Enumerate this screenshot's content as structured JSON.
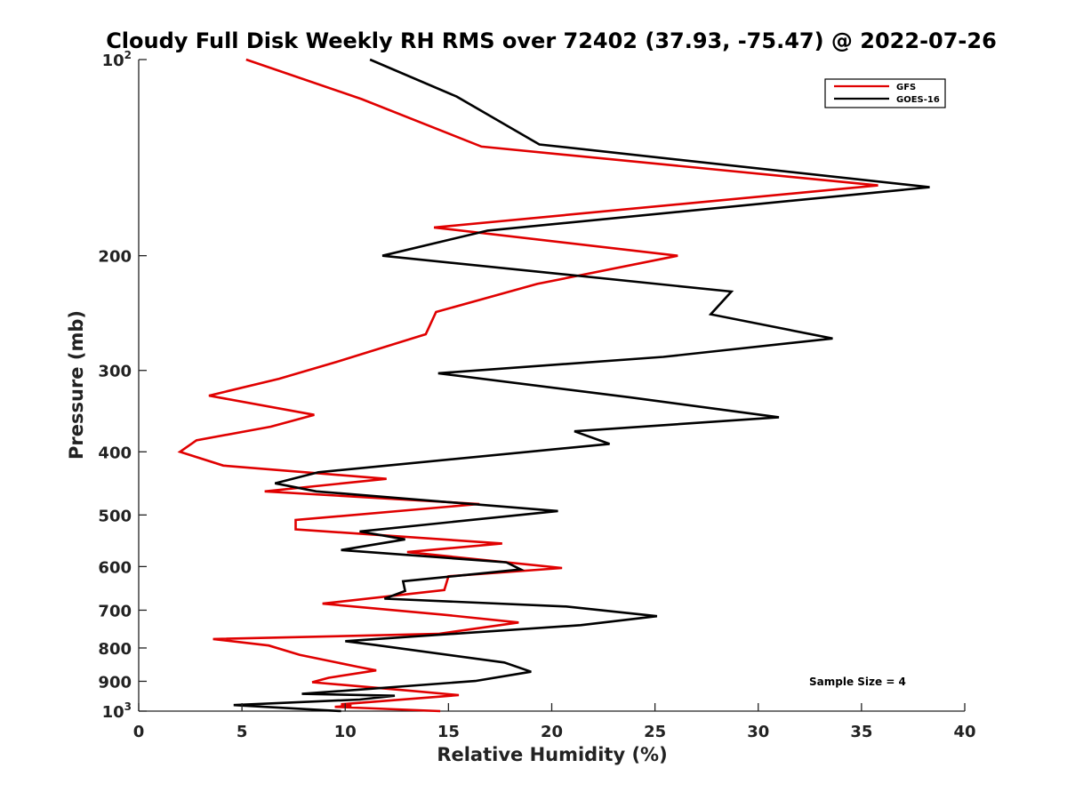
{
  "chart_data": {
    "type": "line",
    "title": "Cloudy Full Disk Weekly RH RMS over 72402 (37.93, -75.47) @ 2022-07-26",
    "xlabel": "Relative Humidity (%)",
    "ylabel": "Pressure (mb)",
    "xlim": [
      0,
      40
    ],
    "ylim": [
      100,
      1000
    ],
    "y_scale": "log",
    "y_reversed": true,
    "x_ticks": [
      "0",
      "5",
      "10",
      "15",
      "20",
      "25",
      "30",
      "35",
      "40"
    ],
    "y_ticks": [
      {
        "value": 100,
        "base": "10",
        "exp": "2"
      },
      {
        "value": 200,
        "base": "200",
        "exp": ""
      },
      {
        "value": 300,
        "base": "300",
        "exp": ""
      },
      {
        "value": 400,
        "base": "400",
        "exp": ""
      },
      {
        "value": 500,
        "base": "500",
        "exp": ""
      },
      {
        "value": 600,
        "base": "600",
        "exp": ""
      },
      {
        "value": 700,
        "base": "700",
        "exp": ""
      },
      {
        "value": 800,
        "base": "800",
        "exp": ""
      },
      {
        "value": 900,
        "base": "900",
        "exp": ""
      },
      {
        "value": 1000,
        "base": "10",
        "exp": "3"
      }
    ],
    "grid": false,
    "legend_position": "top-right",
    "annotation": "Sample Size = 4",
    "series": [
      {
        "name": "GFS",
        "color": "#e00000",
        "points": [
          [
            5.2,
            100
          ],
          [
            10.8,
            115
          ],
          [
            16.6,
            136
          ],
          [
            35.8,
            156
          ],
          [
            14.3,
            181
          ],
          [
            26.1,
            200
          ],
          [
            19.3,
            221
          ],
          [
            14.4,
            244
          ],
          [
            13.9,
            264
          ],
          [
            9.6,
            291
          ],
          [
            6.8,
            309
          ],
          [
            3.4,
            328
          ],
          [
            8.5,
            351
          ],
          [
            6.4,
            366
          ],
          [
            2.8,
            384
          ],
          [
            2.0,
            400
          ],
          [
            4.1,
            420
          ],
          [
            12.0,
            440
          ],
          [
            6.1,
            460
          ],
          [
            16.5,
            481
          ],
          [
            7.6,
            509
          ],
          [
            7.6,
            526
          ],
          [
            17.6,
            553
          ],
          [
            13.0,
            570
          ],
          [
            20.5,
            603
          ],
          [
            15.0,
            621
          ],
          [
            14.8,
            652
          ],
          [
            8.9,
            684
          ],
          [
            14.7,
            711
          ],
          [
            18.4,
            731
          ],
          [
            14.5,
            761
          ],
          [
            3.6,
            775
          ],
          [
            6.3,
            793
          ],
          [
            7.8,
            820
          ],
          [
            10.6,
            855
          ],
          [
            11.5,
            866
          ],
          [
            9.2,
            889
          ],
          [
            8.4,
            903
          ],
          [
            13.2,
            931
          ],
          [
            15.5,
            945
          ],
          [
            9.8,
            976
          ],
          [
            10.3,
            982
          ],
          [
            9.5,
            985
          ],
          [
            14.6,
            1000
          ]
        ]
      },
      {
        "name": "GOES-16",
        "color": "#000000",
        "points": [
          [
            11.2,
            100
          ],
          [
            15.4,
            114
          ],
          [
            19.4,
            135
          ],
          [
            38.3,
            157
          ],
          [
            16.9,
            183
          ],
          [
            11.8,
            200
          ],
          [
            28.7,
            227
          ],
          [
            27.7,
            246
          ],
          [
            33.6,
            268
          ],
          [
            25.4,
            286
          ],
          [
            14.5,
            303
          ],
          [
            23.8,
            330
          ],
          [
            31.0,
            354
          ],
          [
            21.1,
            372
          ],
          [
            22.8,
            389
          ],
          [
            8.7,
            430
          ],
          [
            6.6,
            447
          ],
          [
            8.6,
            460
          ],
          [
            20.3,
            493
          ],
          [
            10.7,
            530
          ],
          [
            12.9,
            545
          ],
          [
            9.8,
            566
          ],
          [
            17.8,
            591
          ],
          [
            18.5,
            606
          ],
          [
            12.8,
            632
          ],
          [
            12.9,
            654
          ],
          [
            11.9,
            672
          ],
          [
            20.7,
            691
          ],
          [
            25.1,
            715
          ],
          [
            21.4,
            738
          ],
          [
            10.0,
            781
          ],
          [
            11.4,
            791
          ],
          [
            17.7,
            842
          ],
          [
            19.0,
            870
          ],
          [
            16.3,
            899
          ],
          [
            7.9,
            941
          ],
          [
            12.4,
            947
          ],
          [
            10.7,
            960
          ],
          [
            4.6,
            979
          ],
          [
            9.8,
            1000
          ]
        ]
      }
    ]
  }
}
